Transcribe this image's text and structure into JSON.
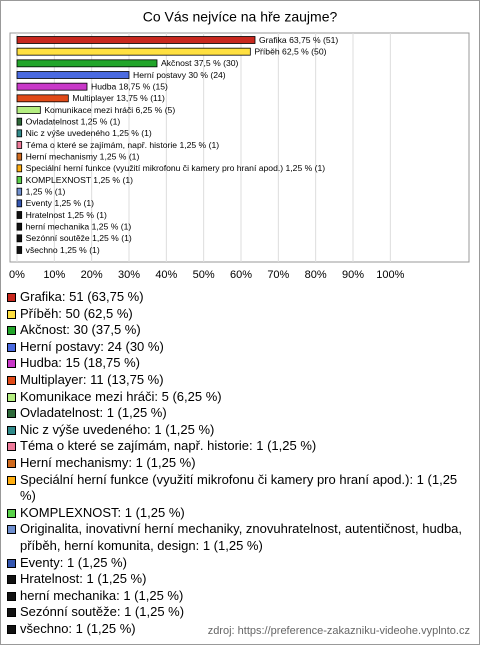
{
  "chart_data": {
    "type": "barh",
    "title": "Co Vás nejvíce na hře zaujme?",
    "categories": [
      "Grafika",
      "Příběh",
      "Akčnost",
      "Herní postavy",
      "Hudba",
      "Multiplayer",
      "Komunikace mezi hráči",
      "Ovladatelnost",
      "Nic z výše uvedeného",
      "Téma o které se zajímám, např. historie",
      "Herní mechanismy",
      "Speciální herní funkce (využití mikrofonu či kamery pro hraní apod.)",
      "KOMPLEXNOST",
      "Originalita, inovativní herní mechaniky, znovuhratelnost, autentičnost, hudba, příběh, herní komunita, design",
      "Eventy",
      "Hratelnost",
      "herní mechanika",
      "Sezónní soutěže",
      "všechno"
    ],
    "values": [
      63.75,
      62.5,
      37.5,
      30,
      18.75,
      13.75,
      6.25,
      1.25,
      1.25,
      1.25,
      1.25,
      1.25,
      1.25,
      1.25,
      1.25,
      1.25,
      1.25,
      1.25,
      1.25
    ],
    "value_labels": [
      "Grafika 63,75 % (51)",
      "Příběh 62,5 % (50)",
      "Akčnost 37,5 % (30)",
      "Herní postavy 30 % (24)",
      "Hudba 18,75 % (15)",
      "Multiplayer 13,75 % (11)",
      "Komunikace mezi hráči 6,25 % (5)",
      "Ovladatelnost 1,25 % (1)",
      "Nic z výše uvedeného 1,25 % (1)",
      "Téma o které se zajímám, např. historie 1,25 % (1)",
      "Herní mechanismy 1,25 % (1)",
      "Speciální herní funkce (využití mikrofonu či kamery pro hraní apod.) 1,25 % (1)",
      "KOMPLEXNOST 1,25 % (1)",
      "1,25 % (1)",
      "Eventy 1,25 % (1)",
      "Hratelnost 1,25 % (1)",
      "herní mechanika 1,25 % (1)",
      "Sezónní soutěže 1,25 % (1)",
      "všechno 1,25 % (1)"
    ],
    "legend": [
      "Grafika: 51 (63,75 %)",
      "Příběh: 50 (62,5 %)",
      "Akčnost: 30 (37,5 %)",
      "Herní postavy: 24 (30 %)",
      "Hudba: 15 (18,75 %)",
      "Multiplayer: 11 (13,75 %)",
      "Komunikace mezi hráči: 5 (6,25 %)",
      "Ovladatelnost: 1 (1,25 %)",
      "Nic z výše uvedeného: 1 (1,25 %)",
      "Téma o které se zajímám, např. historie: 1 (1,25 %)",
      "Herní mechanismy: 1 (1,25 %)",
      "Speciální herní funkce (využití mikrofonu či kamery pro hraní apod.): 1 (1,25 %)",
      "KOMPLEXNOST: 1 (1,25 %)",
      "Originalita, inovativní herní mechaniky, znovuhratelnost, autentičnost, hudba, příběh, herní komunita, design: 1 (1,25 %)",
      "Eventy: 1 (1,25 %)",
      "Hratelnost: 1 (1,25 %)",
      "herní mechanika: 1 (1,25 %)",
      "Sezónní soutěže: 1 (1,25 %)",
      "všechno: 1 (1,25 %)"
    ],
    "colors": [
      "#c8281e",
      "#ffe040",
      "#22a52a",
      "#4a6ae0",
      "#c838c8",
      "#e04a18",
      "#b4ee80",
      "#2e6a3a",
      "#2f8a8a",
      "#ee7a9a",
      "#d06a1e",
      "#ffae10",
      "#5ad24a",
      "#6f8fcf",
      "#3355b0",
      "#111111",
      "#111111",
      "#111111",
      "#111111"
    ],
    "xlim": [
      0,
      120
    ],
    "xticks": [
      {
        "value": 0,
        "label": "0%"
      },
      {
        "value": 10,
        "label": "10%"
      },
      {
        "value": 20,
        "label": "20%"
      },
      {
        "value": 30,
        "label": "30%"
      },
      {
        "value": 40,
        "label": "40%"
      },
      {
        "value": 50,
        "label": "50%"
      },
      {
        "value": 60,
        "label": "60%"
      },
      {
        "value": 70,
        "label": "70%"
      },
      {
        "value": 80,
        "label": "80%"
      },
      {
        "value": 90,
        "label": "90%"
      },
      {
        "value": 100,
        "label": "100%"
      }
    ],
    "grid": true,
    "source": "zdroj: https://preference-zakazniku-videohe.vyplnto.cz"
  }
}
